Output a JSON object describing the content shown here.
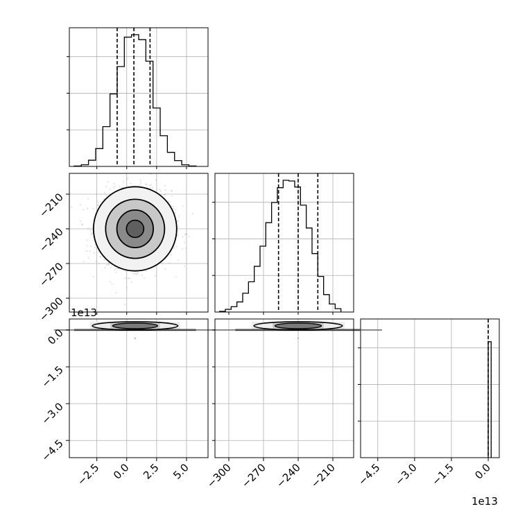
{
  "chart_data": {
    "type": "corner",
    "n_params": 3,
    "param_offsets": [
      null,
      null,
      "1e13"
    ],
    "axis_ranges": [
      [
        -4.8,
        6.8
      ],
      [
        -312,
        -192
      ],
      [
        -5.2,
        0.45
      ]
    ],
    "ticks": [
      {
        "values": [
          -2.5,
          0.0,
          2.5,
          5.0
        ],
        "labels": [
          "−2.5",
          "0.0",
          "2.5",
          "5.0"
        ]
      },
      {
        "values": [
          -300,
          -270,
          -240,
          -210
        ],
        "labels": [
          "−300",
          "−270",
          "−240",
          "−210"
        ]
      },
      {
        "values": [
          -4.5,
          -3.0,
          -1.5,
          0.0
        ],
        "labels": [
          "−4.5",
          "−3.0",
          "−1.5",
          "0.0"
        ]
      }
    ],
    "marginals": [
      {
        "param": 0,
        "bin_edges": [
          -4.4,
          -3.8,
          -3.2,
          -2.6,
          -2.0,
          -1.4,
          -0.8,
          -0.2,
          0.4,
          1.0,
          1.6,
          2.2,
          2.8,
          3.4,
          4.0,
          4.6,
          5.2,
          5.8
        ],
        "counts": [
          1,
          4,
          15,
          43,
          96,
          175,
          241,
          312,
          318,
          306,
          254,
          141,
          74,
          34,
          14,
          4,
          1
        ],
        "quantiles": [
          -0.8,
          0.6,
          1.95
        ]
      },
      {
        "param": 1,
        "bin_edges": [
          -308,
          -303,
          -298,
          -293,
          -288,
          -283,
          -278,
          -273,
          -268,
          -263,
          -258,
          -253,
          -248,
          -243,
          -238,
          -233,
          -228,
          -223,
          -218,
          -213,
          -208,
          -203
        ],
        "counts": [
          1,
          4,
          8,
          15,
          28,
          45,
          68,
          98,
          133,
          163,
          185,
          196,
          195,
          186,
          159,
          125,
          87,
          53,
          26,
          12,
          5
        ],
        "quantiles": [
          -257,
          -240,
          -223
        ]
      },
      {
        "param": 2,
        "bin_edges": [
          0.0,
          0.12
        ],
        "counts": [
          1
        ],
        "quantiles": [
          0.0
        ]
      }
    ],
    "joint": [
      {
        "x": 0,
        "y": 1,
        "center": [
          0.7,
          -240
        ],
        "sd": [
          1.45,
          15.5
        ],
        "contours": "4 levels, dense core with scatter of samples"
      },
      {
        "x": 0,
        "y": 2,
        "center": [
          0.7,
          0.0
        ],
        "note": "samples concentrated near y = 0"
      },
      {
        "x": 1,
        "y": 2,
        "center": [
          -240,
          0.0
        ],
        "note": "samples concentrated near y = 0"
      }
    ],
    "grid": true,
    "title": "",
    "xlabel": "",
    "ylabel": ""
  }
}
